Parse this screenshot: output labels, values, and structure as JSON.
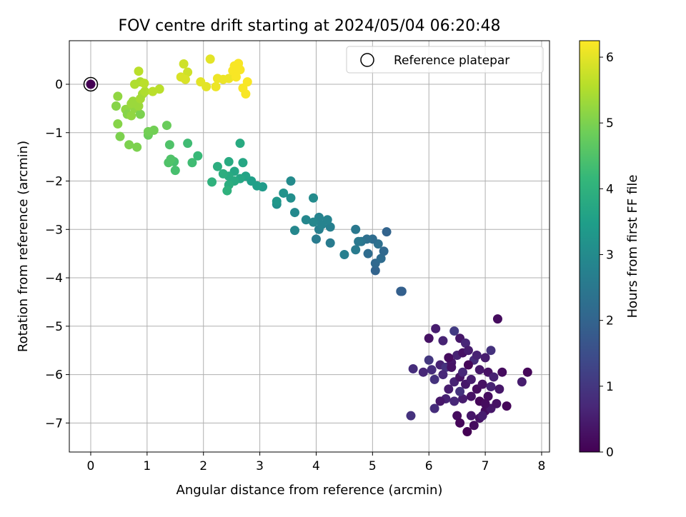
{
  "chart_data": {
    "type": "scatter",
    "title": "FOV centre drift starting at 2024/05/04 06:20:48",
    "xlabel": "Angular distance from reference (arcmin)",
    "ylabel": "Rotation from reference (arcmin)",
    "xlim": [
      -0.38,
      8.14
    ],
    "ylim": [
      -7.6,
      0.9
    ],
    "xticks": [
      "0",
      "1",
      "2",
      "3",
      "4",
      "5",
      "6",
      "7",
      "8"
    ],
    "yticks": [
      "0",
      "−1",
      "−2",
      "−3",
      "−4",
      "−5",
      "−6",
      "−7"
    ],
    "grid": true,
    "legend": {
      "placement": "top-right",
      "entries": [
        "Reference platepar"
      ]
    },
    "colorbar": {
      "label": "Hours from first FF file",
      "range": [
        0,
        6.25
      ],
      "ticks": [
        "0",
        "1",
        "2",
        "3",
        "4",
        "5",
        "6"
      ],
      "colormap": "viridis",
      "colors": [
        "#440154",
        "#482878",
        "#3e4989",
        "#31688e",
        "#26828e",
        "#1f9e89",
        "#35b779",
        "#6ece58",
        "#b5de2b",
        "#fde725"
      ]
    },
    "reference": {
      "x": 0,
      "y": 0
    },
    "series": [
      {
        "values": [
          {
            "x": 6.0,
            "y": -5.25,
            "h": 0.3
          },
          {
            "x": 6.12,
            "y": -5.05,
            "h": 0.5
          },
          {
            "x": 6.25,
            "y": -5.3,
            "h": 0.6
          },
          {
            "x": 6.45,
            "y": -5.1,
            "h": 1.1
          },
          {
            "x": 6.55,
            "y": -5.25,
            "h": 0.4
          },
          {
            "x": 6.65,
            "y": -5.35,
            "h": 0.7
          },
          {
            "x": 7.22,
            "y": -4.85,
            "h": 0.2
          },
          {
            "x": 7.1,
            "y": -5.5,
            "h": 0.9
          },
          {
            "x": 7.0,
            "y": -5.65,
            "h": 0.5
          },
          {
            "x": 6.0,
            "y": -5.7,
            "h": 1.0
          },
          {
            "x": 6.05,
            "y": -5.9,
            "h": 0.8
          },
          {
            "x": 6.2,
            "y": -5.8,
            "h": 0.6
          },
          {
            "x": 6.3,
            "y": -5.85,
            "h": 0.9
          },
          {
            "x": 6.4,
            "y": -5.75,
            "h": 0.4
          },
          {
            "x": 6.5,
            "y": -5.6,
            "h": 0.6
          },
          {
            "x": 6.6,
            "y": -5.55,
            "h": 0.3
          },
          {
            "x": 6.7,
            "y": -5.5,
            "h": 0.5
          },
          {
            "x": 6.8,
            "y": -5.7,
            "h": 0.8
          },
          {
            "x": 6.9,
            "y": -5.9,
            "h": 0.4
          },
          {
            "x": 7.05,
            "y": -5.95,
            "h": 0.3
          },
          {
            "x": 7.15,
            "y": -6.05,
            "h": 0.6
          },
          {
            "x": 7.3,
            "y": -5.95,
            "h": 0.2
          },
          {
            "x": 7.75,
            "y": -5.95,
            "h": 0.1
          },
          {
            "x": 7.65,
            "y": -6.15,
            "h": 0.5
          },
          {
            "x": 5.9,
            "y": -5.95,
            "h": 0.7
          },
          {
            "x": 5.72,
            "y": -5.88,
            "h": 0.8
          },
          {
            "x": 6.1,
            "y": -6.1,
            "h": 0.9
          },
          {
            "x": 6.25,
            "y": -6.0,
            "h": 0.7
          },
          {
            "x": 6.35,
            "y": -6.3,
            "h": 0.5
          },
          {
            "x": 6.45,
            "y": -6.15,
            "h": 0.6
          },
          {
            "x": 6.55,
            "y": -6.05,
            "h": 0.3
          },
          {
            "x": 6.65,
            "y": -6.2,
            "h": 0.4
          },
          {
            "x": 6.75,
            "y": -6.1,
            "h": 0.5
          },
          {
            "x": 6.85,
            "y": -6.3,
            "h": 0.2
          },
          {
            "x": 6.95,
            "y": -6.2,
            "h": 0.3
          },
          {
            "x": 7.1,
            "y": -6.25,
            "h": 0.6
          },
          {
            "x": 7.25,
            "y": -6.3,
            "h": 0.4
          },
          {
            "x": 7.05,
            "y": -6.45,
            "h": 0.2
          },
          {
            "x": 6.9,
            "y": -6.55,
            "h": 0.1
          },
          {
            "x": 6.75,
            "y": -6.45,
            "h": 0.3
          },
          {
            "x": 6.6,
            "y": -6.5,
            "h": 0.5
          },
          {
            "x": 6.45,
            "y": -6.55,
            "h": 0.7
          },
          {
            "x": 6.3,
            "y": -6.5,
            "h": 0.6
          },
          {
            "x": 6.2,
            "y": -6.55,
            "h": 0.4
          },
          {
            "x": 6.1,
            "y": -6.7,
            "h": 0.8
          },
          {
            "x": 5.68,
            "y": -6.85,
            "h": 0.9
          },
          {
            "x": 6.5,
            "y": -6.85,
            "h": 0.2
          },
          {
            "x": 6.55,
            "y": -7.0,
            "h": 0.1
          },
          {
            "x": 6.68,
            "y": -7.18,
            "h": 0.0
          },
          {
            "x": 6.8,
            "y": -7.05,
            "h": 0.2
          },
          {
            "x": 6.9,
            "y": -6.9,
            "h": 0.3
          },
          {
            "x": 7.0,
            "y": -6.75,
            "h": 0.2
          },
          {
            "x": 7.1,
            "y": -6.7,
            "h": 0.4
          },
          {
            "x": 7.2,
            "y": -6.6,
            "h": 0.3
          },
          {
            "x": 7.38,
            "y": -6.65,
            "h": 0.1
          },
          {
            "x": 6.75,
            "y": -6.85,
            "h": 0.4
          },
          {
            "x": 6.95,
            "y": -6.85,
            "h": 0.5
          },
          {
            "x": 7.0,
            "y": -6.6,
            "h": 0.2
          },
          {
            "x": 6.4,
            "y": -5.85,
            "h": 0.3
          },
          {
            "x": 6.6,
            "y": -5.95,
            "h": 0.7
          },
          {
            "x": 6.35,
            "y": -5.65,
            "h": 0.2
          },
          {
            "x": 6.7,
            "y": -5.8,
            "h": 0.1
          },
          {
            "x": 6.55,
            "y": -6.35,
            "h": 0.9
          },
          {
            "x": 6.85,
            "y": -5.6,
            "h": 0.6
          },
          {
            "x": 5.5,
            "y": -4.28,
            "h": 1.85
          },
          {
            "x": 5.52,
            "y": -4.28,
            "h": 1.9
          },
          {
            "x": 5.05,
            "y": -3.85,
            "h": 2.0
          },
          {
            "x": 5.05,
            "y": -3.7,
            "h": 2.1
          },
          {
            "x": 5.15,
            "y": -3.6,
            "h": 2.2
          },
          {
            "x": 5.2,
            "y": -3.45,
            "h": 2.1
          },
          {
            "x": 5.1,
            "y": -3.3,
            "h": 2.3
          },
          {
            "x": 5.0,
            "y": -3.2,
            "h": 2.2
          },
          {
            "x": 4.9,
            "y": -3.2,
            "h": 2.3
          },
          {
            "x": 4.8,
            "y": -3.25,
            "h": 2.4
          },
          {
            "x": 4.75,
            "y": -3.25,
            "h": 2.5
          },
          {
            "x": 4.92,
            "y": -3.5,
            "h": 2.2
          },
          {
            "x": 5.25,
            "y": -3.05,
            "h": 2.0
          },
          {
            "x": 4.7,
            "y": -3.0,
            "h": 2.5
          },
          {
            "x": 4.7,
            "y": -3.42,
            "h": 2.6
          },
          {
            "x": 4.5,
            "y": -3.52,
            "h": 2.7
          },
          {
            "x": 4.25,
            "y": -3.28,
            "h": 2.6
          },
          {
            "x": 4.0,
            "y": -3.2,
            "h": 2.6
          },
          {
            "x": 4.05,
            "y": -3.0,
            "h": 2.7
          },
          {
            "x": 4.1,
            "y": -2.9,
            "h": 2.8
          },
          {
            "x": 4.25,
            "y": -2.95,
            "h": 2.7
          },
          {
            "x": 4.2,
            "y": -2.8,
            "h": 2.8
          },
          {
            "x": 4.05,
            "y": -2.75,
            "h": 2.8
          },
          {
            "x": 3.95,
            "y": -2.85,
            "h": 2.9
          },
          {
            "x": 3.82,
            "y": -2.8,
            "h": 2.9
          },
          {
            "x": 3.62,
            "y": -3.02,
            "h": 2.9
          },
          {
            "x": 3.62,
            "y": -2.65,
            "h": 2.95
          },
          {
            "x": 3.95,
            "y": -2.35,
            "h": 3.0
          },
          {
            "x": 3.55,
            "y": -2.35,
            "h": 3.1
          },
          {
            "x": 3.55,
            "y": -2.0,
            "h": 3.0
          },
          {
            "x": 3.42,
            "y": -2.25,
            "h": 3.2
          },
          {
            "x": 3.3,
            "y": -2.48,
            "h": 3.1
          },
          {
            "x": 3.3,
            "y": -2.42,
            "h": 3.3
          },
          {
            "x": 3.05,
            "y": -2.12,
            "h": 3.4
          },
          {
            "x": 2.95,
            "y": -2.1,
            "h": 3.5
          },
          {
            "x": 2.85,
            "y": -2.0,
            "h": 3.5
          },
          {
            "x": 2.75,
            "y": -1.9,
            "h": 3.6
          },
          {
            "x": 2.65,
            "y": -1.95,
            "h": 3.7
          },
          {
            "x": 2.55,
            "y": -1.8,
            "h": 3.7
          },
          {
            "x": 2.45,
            "y": -1.9,
            "h": 3.8
          },
          {
            "x": 2.35,
            "y": -1.85,
            "h": 3.9
          },
          {
            "x": 2.25,
            "y": -1.7,
            "h": 3.9
          },
          {
            "x": 2.45,
            "y": -1.6,
            "h": 3.8
          },
          {
            "x": 2.7,
            "y": -1.62,
            "h": 3.7
          },
          {
            "x": 2.65,
            "y": -1.22,
            "h": 3.8
          },
          {
            "x": 2.55,
            "y": -2.0,
            "h": 3.8
          },
          {
            "x": 2.45,
            "y": -2.08,
            "h": 3.9
          },
          {
            "x": 2.42,
            "y": -2.2,
            "h": 4.0
          },
          {
            "x": 2.15,
            "y": -2.02,
            "h": 4.0
          },
          {
            "x": 1.9,
            "y": -1.48,
            "h": 4.2
          },
          {
            "x": 1.8,
            "y": -1.62,
            "h": 4.3
          },
          {
            "x": 1.72,
            "y": -1.22,
            "h": 4.3
          },
          {
            "x": 1.5,
            "y": -1.78,
            "h": 4.4
          },
          {
            "x": 1.48,
            "y": -1.6,
            "h": 4.4
          },
          {
            "x": 1.42,
            "y": -1.55,
            "h": 4.5
          },
          {
            "x": 1.38,
            "y": -1.62,
            "h": 4.5
          },
          {
            "x": 1.4,
            "y": -1.25,
            "h": 4.5
          },
          {
            "x": 1.35,
            "y": -0.85,
            "h": 4.8
          },
          {
            "x": 1.12,
            "y": -0.95,
            "h": 4.9
          },
          {
            "x": 1.02,
            "y": -1.05,
            "h": 4.8
          },
          {
            "x": 1.02,
            "y": -0.98,
            "h": 4.9
          },
          {
            "x": 0.82,
            "y": -1.3,
            "h": 5.0
          },
          {
            "x": 0.68,
            "y": -1.25,
            "h": 5.0
          },
          {
            "x": 0.52,
            "y": -1.08,
            "h": 5.0
          },
          {
            "x": 0.48,
            "y": -0.82,
            "h": 5.1
          },
          {
            "x": 0.45,
            "y": -0.45,
            "h": 5.1
          },
          {
            "x": 0.48,
            "y": -0.25,
            "h": 5.2
          },
          {
            "x": 0.62,
            "y": -0.52,
            "h": 5.2
          },
          {
            "x": 0.65,
            "y": -0.62,
            "h": 5.1
          },
          {
            "x": 0.72,
            "y": -0.65,
            "h": 5.2
          },
          {
            "x": 0.78,
            "y": -0.5,
            "h": 5.2
          },
          {
            "x": 0.88,
            "y": -0.62,
            "h": 5.0
          },
          {
            "x": 0.75,
            "y": -0.35,
            "h": 5.3
          },
          {
            "x": 0.85,
            "y": -0.45,
            "h": 5.3
          },
          {
            "x": 0.88,
            "y": -0.3,
            "h": 5.4
          },
          {
            "x": 0.92,
            "y": -0.2,
            "h": 5.4
          },
          {
            "x": 0.96,
            "y": -0.15,
            "h": 5.5
          },
          {
            "x": 0.78,
            "y": 0.0,
            "h": 5.5
          },
          {
            "x": 0.88,
            "y": 0.05,
            "h": 5.5
          },
          {
            "x": 0.95,
            "y": 0.02,
            "h": 5.6
          },
          {
            "x": 0.85,
            "y": 0.27,
            "h": 5.6
          },
          {
            "x": 1.1,
            "y": -0.15,
            "h": 5.6
          },
          {
            "x": 1.22,
            "y": -0.1,
            "h": 5.6
          },
          {
            "x": 0.72,
            "y": -0.4,
            "h": 5.3
          },
          {
            "x": 1.65,
            "y": 0.42,
            "h": 5.8
          },
          {
            "x": 1.72,
            "y": 0.25,
            "h": 5.8
          },
          {
            "x": 1.6,
            "y": 0.15,
            "h": 5.9
          },
          {
            "x": 1.68,
            "y": 0.1,
            "h": 5.9
          },
          {
            "x": 1.95,
            "y": 0.05,
            "h": 6.0
          },
          {
            "x": 2.05,
            "y": -0.05,
            "h": 6.0
          },
          {
            "x": 2.12,
            "y": 0.52,
            "h": 6.0
          },
          {
            "x": 2.22,
            "y": -0.05,
            "h": 6.1
          },
          {
            "x": 2.25,
            "y": 0.12,
            "h": 6.1
          },
          {
            "x": 2.35,
            "y": 0.1,
            "h": 6.1
          },
          {
            "x": 2.45,
            "y": 0.12,
            "h": 6.1
          },
          {
            "x": 2.52,
            "y": 0.28,
            "h": 6.2
          },
          {
            "x": 2.58,
            "y": 0.15,
            "h": 6.2
          },
          {
            "x": 2.55,
            "y": 0.38,
            "h": 6.2
          },
          {
            "x": 2.62,
            "y": 0.43,
            "h": 6.2
          },
          {
            "x": 2.65,
            "y": 0.3,
            "h": 6.2
          },
          {
            "x": 2.7,
            "y": -0.08,
            "h": 6.2
          },
          {
            "x": 2.75,
            "y": -0.2,
            "h": 6.2
          },
          {
            "x": 2.78,
            "y": 0.05,
            "h": 6.2
          },
          {
            "x": 0.0,
            "y": 0.0,
            "h": 0.0
          }
        ]
      }
    ]
  }
}
